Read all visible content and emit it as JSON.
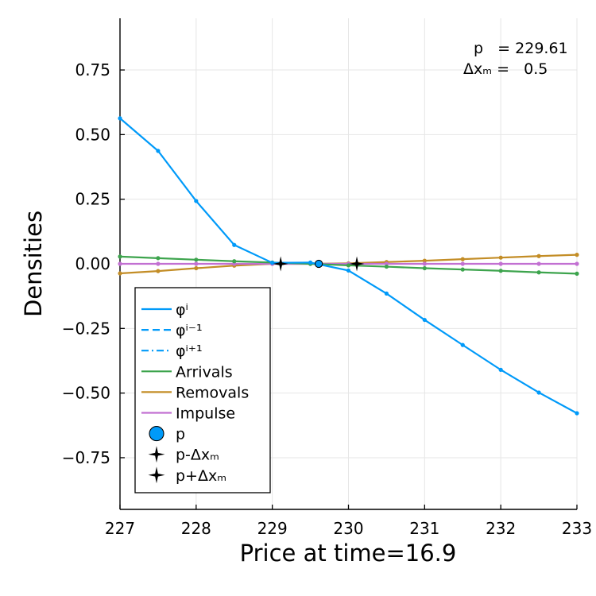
{
  "chart_data": {
    "type": "line",
    "xlabel": "Price at time=16.9",
    "ylabel": "Densities",
    "xlim": [
      227,
      233
    ],
    "ylim": [
      -0.95,
      0.95
    ],
    "xticks": [
      227,
      228,
      229,
      230,
      231,
      232,
      233
    ],
    "yticks": [
      -0.75,
      -0.5,
      -0.25,
      0.0,
      0.25,
      0.5,
      0.75
    ],
    "ytick_labels": [
      "−0.75",
      "−0.50",
      "−0.25",
      "0.00",
      "0.25",
      "0.50",
      "0.75"
    ],
    "grid": true,
    "legend_position": "bottom-left",
    "annotation_lines": [
      "p   = 229.61",
      "Δxₘ =   0.5"
    ],
    "series": [
      {
        "name": "φⁱ",
        "color": "#009af9",
        "style": "solid",
        "markers": true,
        "x": [
          227.0,
          227.5,
          228.0,
          228.5,
          229.0,
          229.5,
          230.0,
          230.5,
          231.0,
          231.5,
          232.0,
          232.5,
          233.0
        ],
        "y": [
          0.563,
          0.437,
          0.243,
          0.073,
          0.004,
          0.005,
          -0.026,
          -0.115,
          -0.217,
          -0.314,
          -0.41,
          -0.498,
          -0.578
        ]
      },
      {
        "name": "φⁱ⁻¹",
        "color": "#009af9",
        "style": "dashed",
        "x": [],
        "y": []
      },
      {
        "name": "φⁱ⁺¹",
        "color": "#009af9",
        "style": "dashdot",
        "x": [],
        "y": []
      },
      {
        "name": "Arrivals",
        "color": "#3da44d",
        "style": "solid",
        "markers": true,
        "x": [
          227.0,
          227.5,
          228.0,
          228.5,
          229.0,
          229.5,
          230.0,
          230.5,
          231.0,
          231.5,
          232.0,
          232.5,
          233.0
        ],
        "y": [
          0.028,
          0.022,
          0.016,
          0.01,
          0.005,
          0.0,
          -0.006,
          -0.011,
          -0.017,
          -0.022,
          -0.027,
          -0.033,
          -0.038
        ]
      },
      {
        "name": "Removals",
        "color": "#c38d26",
        "style": "solid",
        "markers": true,
        "x": [
          227.0,
          227.5,
          228.0,
          228.5,
          229.0,
          229.5,
          230.0,
          230.5,
          231.0,
          231.5,
          232.0,
          232.5,
          233.0
        ],
        "y": [
          -0.037,
          -0.028,
          -0.017,
          -0.007,
          0.0,
          0.0,
          0.002,
          0.007,
          0.012,
          0.018,
          0.024,
          0.03,
          0.035
        ]
      },
      {
        "name": "Impulse",
        "color": "#c270d2",
        "style": "solid",
        "markers": true,
        "x": [
          227.0,
          227.5,
          228.0,
          228.5,
          229.0,
          229.5,
          230.0,
          230.5,
          231.0,
          231.5,
          232.0,
          232.5,
          233.0
        ],
        "y": [
          0,
          0,
          0,
          0,
          0,
          0,
          0,
          0,
          0,
          0,
          0,
          0,
          0
        ]
      }
    ],
    "points": [
      {
        "name": "p",
        "x": 229.61,
        "y": 0.0,
        "color": "#009af9",
        "marker": "circle"
      },
      {
        "name": "p-Δxₘ",
        "x": 229.11,
        "y": 0.0,
        "color": "#000000",
        "marker": "star4"
      },
      {
        "name": "p+Δxₘ",
        "x": 230.11,
        "y": 0.0,
        "color": "#000000",
        "marker": "star4"
      }
    ]
  }
}
